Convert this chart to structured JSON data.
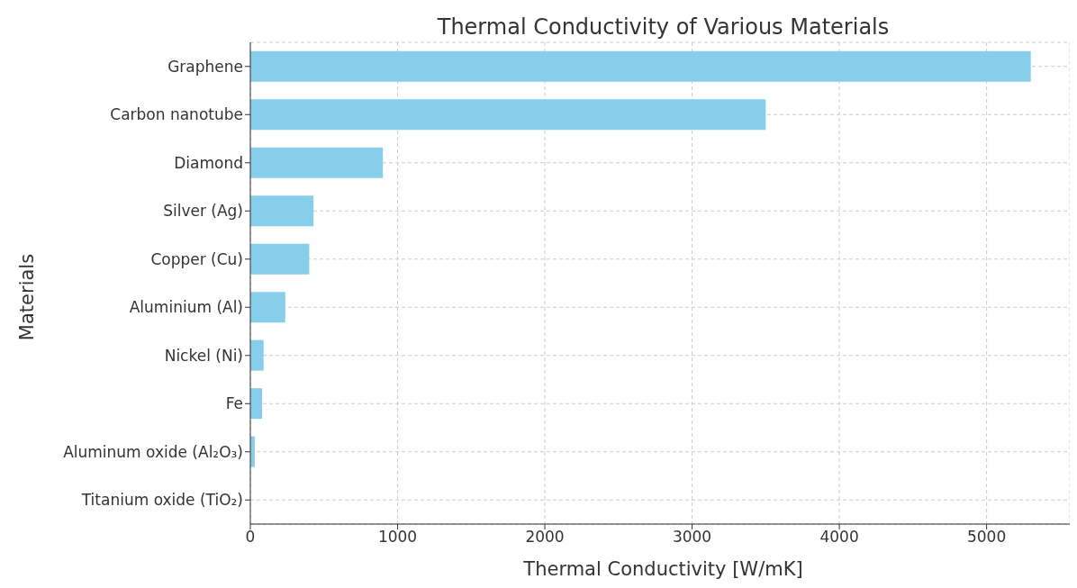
{
  "chart_data": {
    "type": "bar",
    "orientation": "horizontal",
    "title": "Thermal Conductivity of Various Materials",
    "xlabel": "Thermal Conductivity [W/mK]",
    "ylabel": "Materials",
    "categories": [
      "Graphene",
      "Carbon nanotube",
      "Diamond",
      "Silver (Ag)",
      "Copper (Cu)",
      "Aluminium (Al)",
      "Nickel (Ni)",
      "Fe",
      "Aluminum oxide (Al₂O₃)",
      "Titanium oxide (TiO₂)"
    ],
    "values": [
      5300,
      3500,
      900,
      429,
      400,
      237,
      90,
      80,
      30,
      null
    ],
    "color": "#87ceeb",
    "xlim": [
      0,
      5565
    ],
    "xticks": [
      0,
      1000,
      2000,
      3000,
      4000,
      5000
    ],
    "grid": true
  }
}
